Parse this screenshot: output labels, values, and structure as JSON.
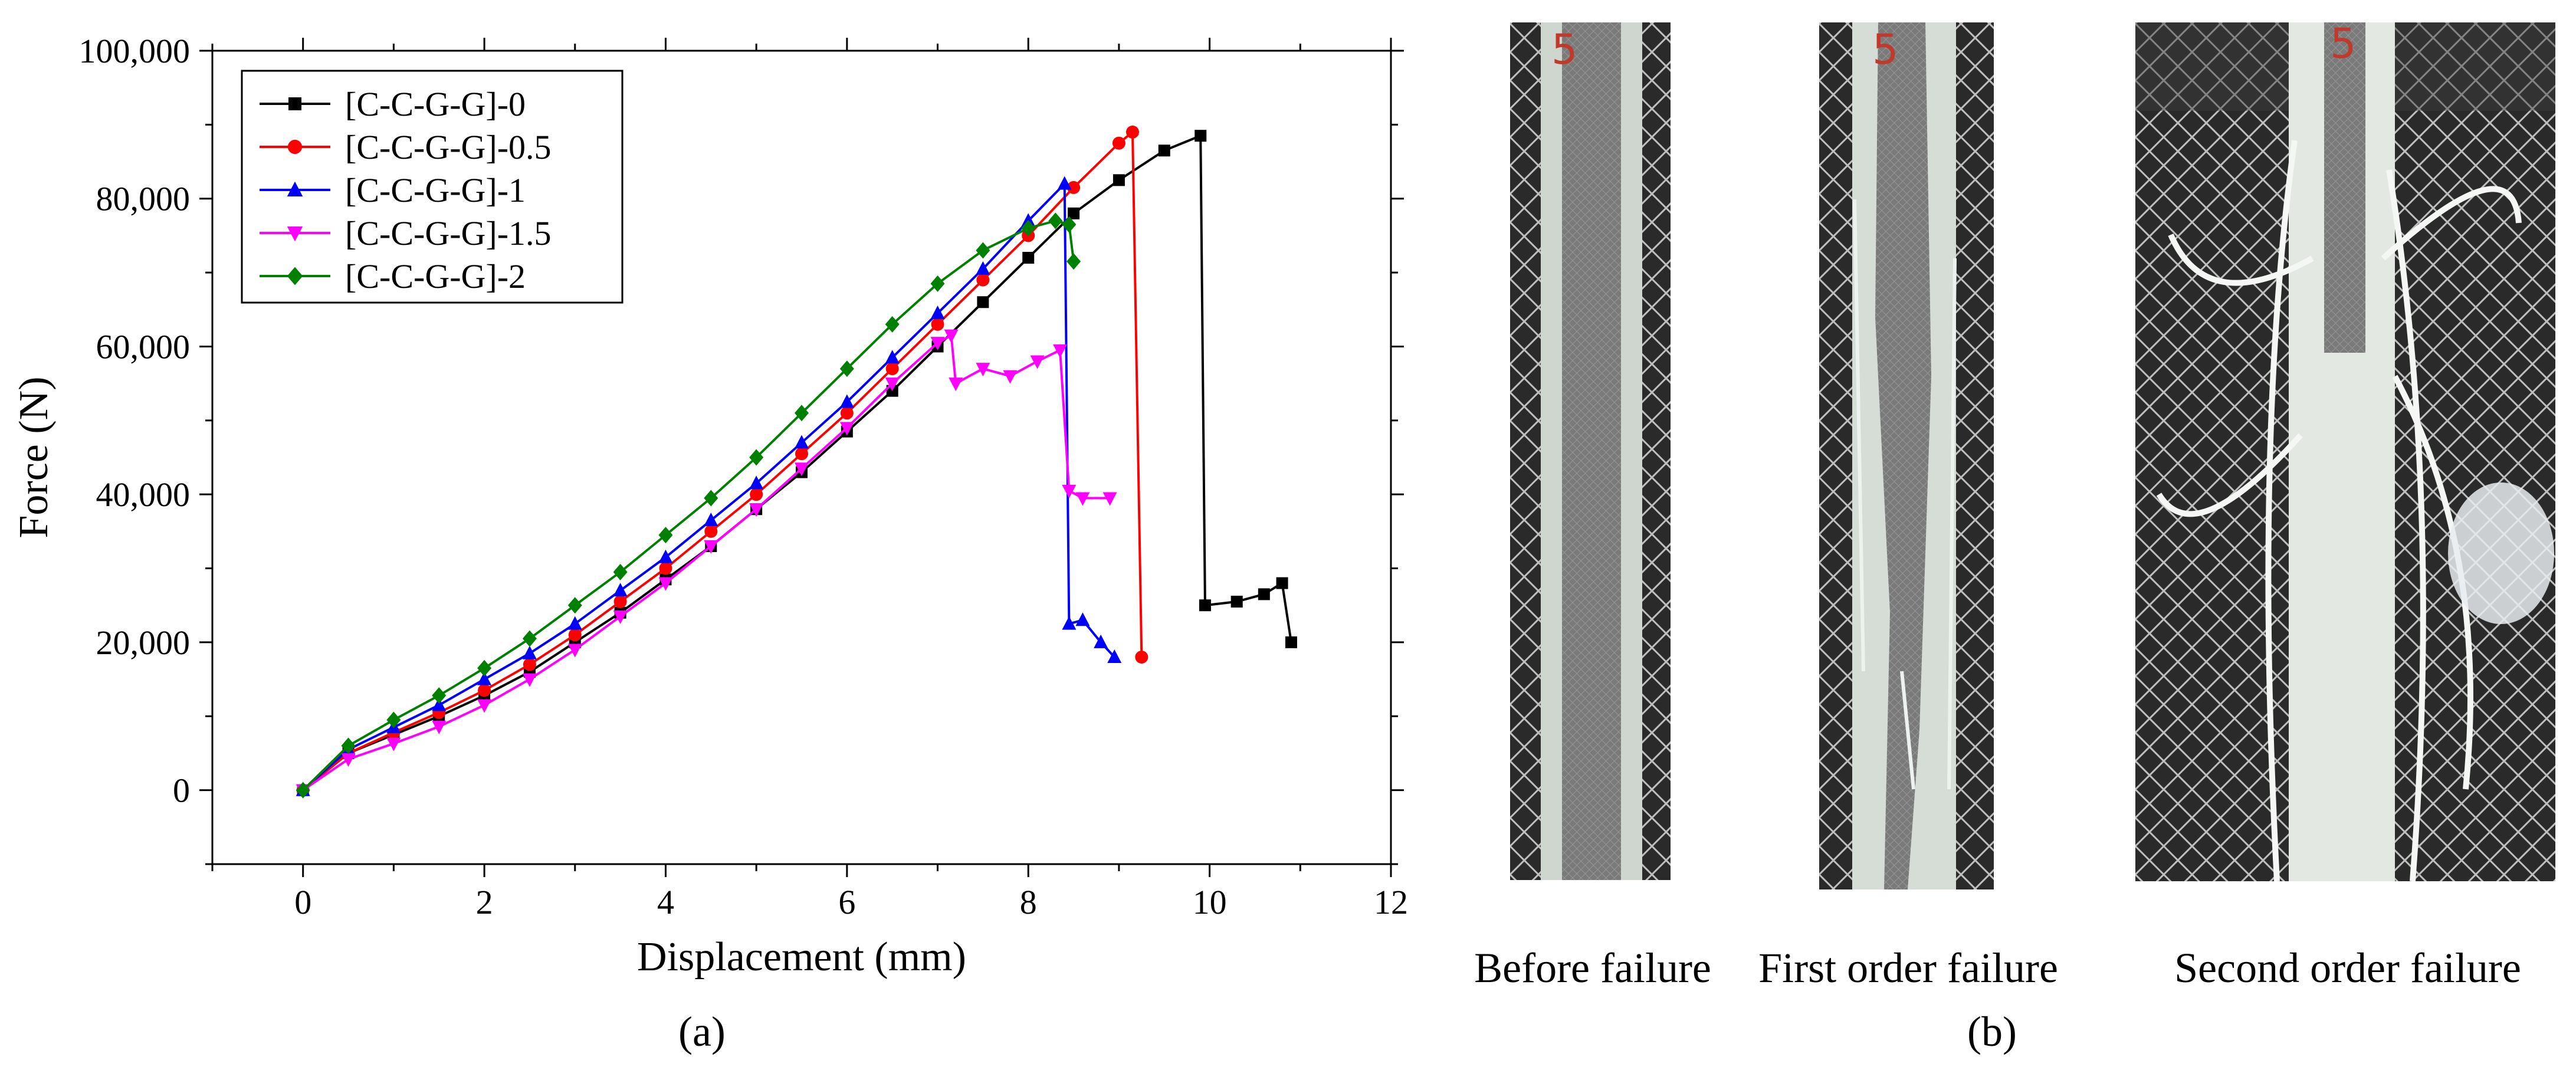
{
  "chart_data": {
    "type": "line",
    "title": "",
    "xlabel": "Displacement (mm)",
    "ylabel": "Force (N)",
    "xlim": [
      -1,
      12
    ],
    "ylim": [
      -10000,
      100000
    ],
    "xticks": [
      0,
      2,
      4,
      6,
      8,
      10,
      12
    ],
    "xtick_labels": [
      "0",
      "2",
      "4",
      "6",
      "8",
      "10",
      "12"
    ],
    "yticks": [
      0,
      20000,
      40000,
      60000,
      80000,
      100000
    ],
    "ytick_labels": [
      "0",
      "20,000",
      "40,000",
      "60,000",
      "80,000",
      "100,000"
    ],
    "grid": false,
    "legend_position": "top-left",
    "series": [
      {
        "name": "[C-C-G-G]-0",
        "color": "#000000",
        "marker": "square",
        "x": [
          0,
          0.5,
          1,
          1.5,
          2,
          2.5,
          3,
          3.5,
          4,
          4.5,
          5,
          5.5,
          6,
          6.5,
          7,
          7.5,
          8,
          8.5,
          9,
          9.5,
          9.9,
          9.95,
          10.3,
          10.6,
          10.8,
          10.9
        ],
        "y": [
          0,
          5000,
          7500,
          10000,
          12800,
          16000,
          20000,
          24000,
          28500,
          33000,
          38000,
          43000,
          48500,
          54000,
          60000,
          66000,
          72000,
          78000,
          82500,
          86500,
          88500,
          25000,
          25500,
          26500,
          28000,
          20000
        ]
      },
      {
        "name": "[C-C-G-G]-0.5",
        "color": "#ff0000",
        "marker": "circle",
        "x": [
          0,
          0.5,
          1,
          1.5,
          2,
          2.5,
          3,
          3.5,
          4,
          4.5,
          5,
          5.5,
          6,
          6.5,
          7,
          7.5,
          8,
          8.5,
          9,
          9.15,
          9.25
        ],
        "y": [
          0,
          5000,
          7800,
          10500,
          13500,
          17000,
          21000,
          25500,
          30000,
          35000,
          40000,
          45500,
          51000,
          57000,
          63000,
          69000,
          75000,
          81500,
          87500,
          89000,
          18000
        ]
      },
      {
        "name": "[C-C-G-G]-1",
        "color": "#0000ff",
        "marker": "triangle-up",
        "x": [
          0,
          0.5,
          1,
          1.5,
          2,
          2.5,
          3,
          3.5,
          4,
          4.5,
          5,
          5.5,
          6,
          6.5,
          7,
          7.5,
          8,
          8.4,
          8.45,
          8.6,
          8.8,
          8.95
        ],
        "y": [
          0,
          5500,
          8500,
          11500,
          15000,
          18500,
          22500,
          27000,
          31500,
          36500,
          41500,
          47000,
          52500,
          58500,
          64500,
          70500,
          77000,
          82000,
          22500,
          23000,
          20000,
          18000
        ]
      },
      {
        "name": "[C-C-G-G]-1.5",
        "color": "#ff00ff",
        "marker": "triangle-down",
        "x": [
          0,
          0.5,
          1,
          1.5,
          2,
          2.5,
          3,
          3.5,
          4,
          4.5,
          5,
          5.5,
          6,
          6.5,
          7,
          7.15,
          7.2,
          7.5,
          7.8,
          8.1,
          8.35,
          8.45,
          8.6,
          8.9
        ],
        "y": [
          0,
          4200,
          6300,
          8600,
          11500,
          15000,
          19000,
          23500,
          28000,
          33000,
          38000,
          43500,
          49000,
          55000,
          60500,
          61500,
          55000,
          57000,
          56000,
          58000,
          59500,
          40500,
          39500,
          39500
        ]
      },
      {
        "name": "[C-C-G-G]-2",
        "color": "#008000",
        "marker": "diamond",
        "x": [
          0,
          0.5,
          1,
          1.5,
          2,
          2.5,
          3,
          3.5,
          4,
          4.5,
          5,
          5.5,
          6,
          6.5,
          7,
          7.5,
          8,
          8.3,
          8.45,
          8.5
        ],
        "y": [
          0,
          6000,
          9500,
          12800,
          16500,
          20500,
          25000,
          29500,
          34500,
          39500,
          45000,
          51000,
          57000,
          63000,
          68500,
          73000,
          76000,
          77000,
          76500,
          71500
        ]
      }
    ]
  },
  "labels": {
    "chart_caption": "(a)",
    "photos_caption": "(b)"
  },
  "photos": [
    {
      "caption": "Before failure",
      "marker_text": "5"
    },
    {
      "caption": "First order failure",
      "marker_text": "5"
    },
    {
      "caption": "Second order failure",
      "marker_text": "5"
    }
  ]
}
